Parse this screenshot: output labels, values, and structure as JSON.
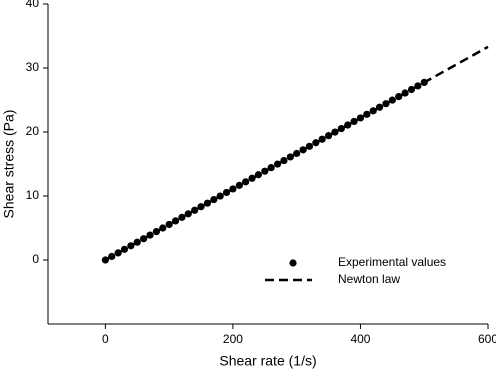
{
  "chart_data": {
    "type": "scatter",
    "xlabel": "Shear rate (1/s)",
    "ylabel": "Shear stress (Pa)",
    "xlim": [
      -90,
      600
    ],
    "ylim": [
      -10,
      40
    ],
    "xticks": [
      0,
      200,
      400,
      600
    ],
    "yticks": [
      0,
      10,
      20,
      30,
      40
    ],
    "grid": false,
    "legend": "lower right",
    "series": [
      {
        "name": "Experimental values",
        "type": "scatter",
        "color": "#000000",
        "x": [
          0,
          10,
          20,
          30,
          40,
          50,
          60,
          70,
          80,
          90,
          100,
          110,
          120,
          130,
          140,
          150,
          160,
          170,
          180,
          190,
          200,
          210,
          220,
          230,
          240,
          250,
          260,
          270,
          280,
          290,
          300,
          310,
          320,
          330,
          340,
          350,
          360,
          370,
          380,
          390,
          400,
          410,
          420,
          430,
          440,
          450,
          460,
          470,
          480,
          490,
          500
        ],
        "values": [
          0,
          0.56,
          1.11,
          1.67,
          2.22,
          2.78,
          3.33,
          3.89,
          4.44,
          5.0,
          5.55,
          6.11,
          6.66,
          7.22,
          7.77,
          8.33,
          8.88,
          9.44,
          9.99,
          10.55,
          11.1,
          11.66,
          12.21,
          12.77,
          13.32,
          13.88,
          14.43,
          14.99,
          15.54,
          16.1,
          16.65,
          17.21,
          17.76,
          18.32,
          18.87,
          19.43,
          19.98,
          20.54,
          21.09,
          21.65,
          22.2,
          22.76,
          23.31,
          23.87,
          24.42,
          24.98,
          25.53,
          26.09,
          26.64,
          27.2,
          27.75
        ]
      },
      {
        "name": "Newton law",
        "type": "line",
        "line_style": "dashed",
        "color": "#000000",
        "x": [
          0,
          600
        ],
        "values": [
          0,
          33.3
        ]
      }
    ]
  }
}
